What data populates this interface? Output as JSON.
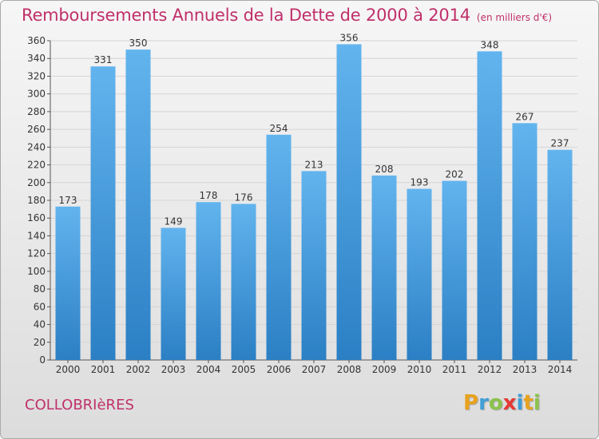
{
  "title": {
    "main": "Remboursements Annuels de la Dette de 2000 à 2014",
    "unit": "(en milliers d'€)"
  },
  "commune": "COLLOBRIèRES",
  "logo": {
    "text": "Proxiti",
    "letters": [
      {
        "ch": "P",
        "color": "#e8a21c"
      },
      {
        "ch": "r",
        "color": "#3e9fd8"
      },
      {
        "ch": "o",
        "color": "#8bc34a"
      },
      {
        "ch": "x",
        "color": "#e53935"
      },
      {
        "ch": "i",
        "color": "#3e9fd8"
      },
      {
        "ch": "t",
        "color": "#e8a21c"
      },
      {
        "ch": "i",
        "color": "#8bc34a"
      }
    ]
  },
  "colors": {
    "bar_light": "#62b4ee",
    "bar_dark": "#2b7fc4",
    "axis": "#555555",
    "grid": "#d5d5d5",
    "title": "#c0306a"
  },
  "chart_data": {
    "type": "bar",
    "title": "Remboursements Annuels de la Dette de 2000 à 2014",
    "ylabel": "en milliers d'€",
    "xlabel": "",
    "categories": [
      "2000",
      "2001",
      "2002",
      "2003",
      "2004",
      "2005",
      "2006",
      "2007",
      "2008",
      "2009",
      "2010",
      "2011",
      "2012",
      "2013",
      "2014"
    ],
    "values": [
      173,
      331,
      350,
      149,
      178,
      176,
      254,
      213,
      356,
      208,
      193,
      202,
      348,
      267,
      237
    ],
    "ylim": [
      0,
      360
    ],
    "yticks": [
      0,
      20,
      40,
      60,
      80,
      100,
      120,
      140,
      160,
      180,
      200,
      220,
      240,
      260,
      280,
      300,
      320,
      340,
      360
    ],
    "grid": true
  }
}
